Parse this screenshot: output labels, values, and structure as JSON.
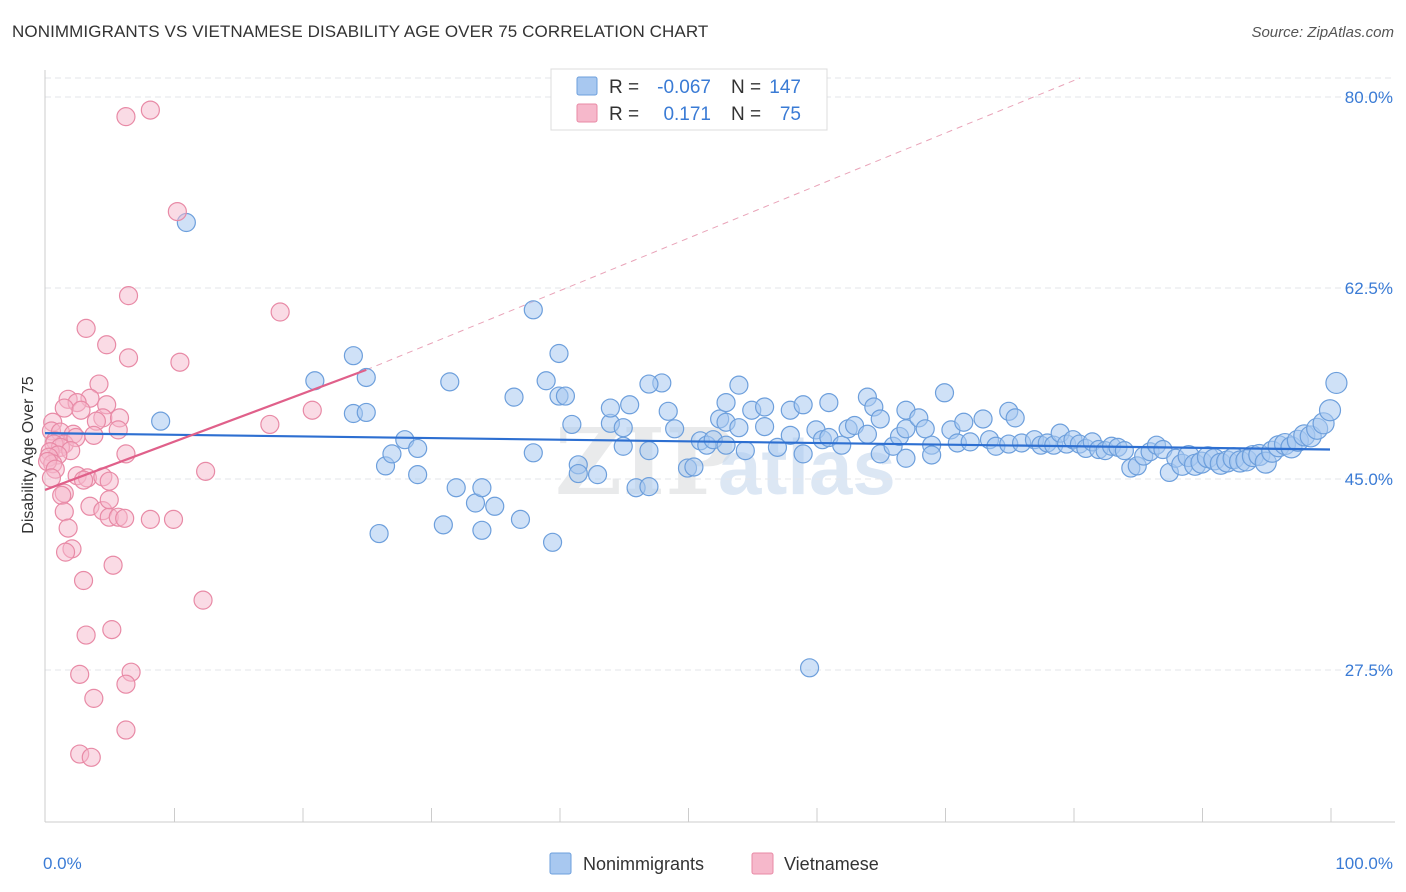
{
  "header": {
    "title": "NONIMMIGRANTS VS VIETNAMESE DISABILITY AGE OVER 75 CORRELATION CHART",
    "source": "Source: ZipAtlas.com"
  },
  "watermark": {
    "part1": "ZIP",
    "part2": "atlas"
  },
  "colors": {
    "blue_fill": "#a8c8f0",
    "blue_stroke": "#6d9fdc",
    "blue_line": "#2d6fd1",
    "pink_fill": "#f6b8cb",
    "pink_stroke": "#e88aa6",
    "pink_line": "#e0608a",
    "grid": "#e3e6ea",
    "tick_label": "#3a7bd5"
  },
  "legend": {
    "rows": [
      {
        "r_label": "R =",
        "r_value": "-0.067",
        "n_label": "N =",
        "n_value": "147"
      },
      {
        "r_label": "R =",
        "r_value": "0.171",
        "n_label": "N =",
        "n_value": "75"
      }
    ]
  },
  "chart_data": {
    "type": "scatter",
    "title": "NONIMMIGRANTS VS VIETNAMESE DISABILITY AGE OVER 75 CORRELATION CHART",
    "xlabel": "",
    "ylabel": "Disability Age Over 75",
    "xlim": [
      0,
      100
    ],
    "ylim": [
      14,
      84
    ],
    "y_ticks": [
      27.5,
      45.0,
      62.5,
      80.0
    ],
    "y_tick_labels": [
      "27.5%",
      "45.0%",
      "62.5%",
      "80.0%"
    ],
    "x_tick_labels": [
      "0.0%",
      "100.0%"
    ],
    "x_minor_ticks": [
      10,
      20,
      30,
      40,
      50,
      60,
      70,
      80,
      90,
      100
    ],
    "legend_placement": "top-center",
    "series": [
      {
        "name": "Nonimmigrants",
        "r": -0.067,
        "n": 147,
        "trend": {
          "x": [
            0,
            100
          ],
          "y": [
            49.2,
            47.7
          ]
        },
        "points": [
          [
            9,
            50.3
          ],
          [
            11,
            68.5
          ],
          [
            21,
            54
          ],
          [
            24,
            56.3
          ],
          [
            25,
            54.3
          ],
          [
            24,
            51
          ],
          [
            25,
            51.1
          ],
          [
            26,
            40
          ],
          [
            26.5,
            46.2
          ],
          [
            27,
            47.3
          ],
          [
            28,
            48.6
          ],
          [
            29,
            47.8
          ],
          [
            29,
            45.4
          ],
          [
            31,
            40.8
          ],
          [
            31.5,
            53.9
          ],
          [
            32,
            44.2
          ],
          [
            33.5,
            42.8
          ],
          [
            34,
            44.2
          ],
          [
            34,
            40.3
          ],
          [
            35,
            42.5
          ],
          [
            36.5,
            52.5
          ],
          [
            37,
            41.3
          ],
          [
            38,
            47.4
          ],
          [
            38,
            60.5
          ],
          [
            39,
            54
          ],
          [
            39.5,
            39.2
          ],
          [
            40,
            52.6
          ],
          [
            40.5,
            52.6
          ],
          [
            40,
            56.5
          ],
          [
            41,
            50
          ],
          [
            41.5,
            46.3
          ],
          [
            41.5,
            45.5
          ],
          [
            43,
            45.4
          ],
          [
            44,
            50.1
          ],
          [
            45,
            48
          ],
          [
            45.5,
            51.8
          ],
          [
            46,
            44.2
          ],
          [
            47,
            44.3
          ],
          [
            47,
            47.6
          ],
          [
            48,
            53.8
          ],
          [
            48.5,
            51.2
          ],
          [
            49,
            49.6
          ],
          [
            50,
            46
          ],
          [
            50.5,
            46.1
          ],
          [
            51,
            48.5
          ],
          [
            51.5,
            48.1
          ],
          [
            52,
            48.6
          ],
          [
            52.5,
            50.5
          ],
          [
            53,
            52
          ],
          [
            53,
            50.2
          ],
          [
            54,
            53.6
          ],
          [
            54,
            49.7
          ],
          [
            54.5,
            47.6
          ],
          [
            55,
            51.3
          ],
          [
            56,
            51.6
          ],
          [
            56,
            49.8
          ],
          [
            57,
            47.9
          ],
          [
            58,
            51.3
          ],
          [
            58,
            49
          ],
          [
            59,
            51.8
          ],
          [
            59,
            47.3
          ],
          [
            60,
            49.5
          ],
          [
            60.5,
            48.6
          ],
          [
            61,
            52
          ],
          [
            61,
            48.8
          ],
          [
            62,
            48.1
          ],
          [
            62.5,
            49.6
          ],
          [
            63,
            49.9
          ],
          [
            64,
            52.5
          ],
          [
            64,
            49.1
          ],
          [
            64.5,
            51.6
          ],
          [
            65,
            50.5
          ],
          [
            65,
            47.3
          ],
          [
            66,
            48
          ],
          [
            66.5,
            48.9
          ],
          [
            67,
            51.3
          ],
          [
            67,
            49.6
          ],
          [
            68,
            50.6
          ],
          [
            68.5,
            49.6
          ],
          [
            69,
            48.1
          ],
          [
            69,
            47.2
          ],
          [
            70,
            52.9
          ],
          [
            70.5,
            49.5
          ],
          [
            71,
            48.3
          ],
          [
            71.5,
            50.2
          ],
          [
            72,
            48.4
          ],
          [
            73,
            50.5
          ],
          [
            73.5,
            48.6
          ],
          [
            74,
            48
          ],
          [
            75,
            51.2
          ],
          [
            75,
            48.2
          ],
          [
            75.5,
            50.6
          ],
          [
            76,
            48.3
          ],
          [
            77,
            48.6
          ],
          [
            77.5,
            48.1
          ],
          [
            78,
            48.3
          ],
          [
            78.5,
            48.1
          ],
          [
            79,
            49.2
          ],
          [
            79.5,
            48.2
          ],
          [
            80,
            48.6
          ],
          [
            80.5,
            48.2
          ],
          [
            81,
            47.8
          ],
          [
            81.5,
            48.4
          ],
          [
            82,
            47.7
          ],
          [
            82.5,
            47.6
          ],
          [
            83,
            48
          ],
          [
            83.5,
            47.9
          ],
          [
            84,
            47.6
          ],
          [
            84.5,
            46
          ],
          [
            85,
            46.2
          ],
          [
            85.5,
            47.1
          ],
          [
            86,
            47.5
          ],
          [
            86.5,
            48.1
          ],
          [
            87,
            47.7
          ],
          [
            87.5,
            45.6
          ],
          [
            88,
            46.9
          ],
          [
            88.5,
            46.3
          ],
          [
            89,
            47.1
          ],
          [
            89.5,
            46.3
          ],
          [
            90,
            46.5
          ],
          [
            90.5,
            47
          ],
          [
            91,
            46.8
          ],
          [
            91.5,
            46.4
          ],
          [
            92,
            46.6
          ],
          [
            92.5,
            46.9
          ],
          [
            93,
            46.6
          ],
          [
            93.5,
            46.7
          ],
          [
            94,
            47.1
          ],
          [
            94.5,
            47.2
          ],
          [
            95,
            46.5
          ],
          [
            95.5,
            47.5
          ],
          [
            96,
            48
          ],
          [
            96.5,
            48.2
          ],
          [
            97,
            47.9
          ],
          [
            97.5,
            48.5
          ],
          [
            98,
            49
          ],
          [
            98.5,
            48.9
          ],
          [
            99,
            49.6
          ],
          [
            99.5,
            50.1
          ],
          [
            100,
            51.3
          ],
          [
            100.5,
            53.8
          ],
          [
            59.5,
            27.7
          ],
          [
            44,
            51.5
          ],
          [
            47,
            53.7
          ],
          [
            45,
            49.7
          ],
          [
            53,
            48.1
          ],
          [
            67,
            46.9
          ]
        ]
      },
      {
        "name": "Vietnamese",
        "r": 0.171,
        "n": 75,
        "trend": {
          "x": [
            0,
            25
          ],
          "y": [
            44,
            55
          ]
        },
        "points": [
          [
            6.3,
            78.2
          ],
          [
            8.2,
            78.8
          ],
          [
            10.3,
            69.5
          ],
          [
            6.5,
            61.8
          ],
          [
            18.3,
            60.3
          ],
          [
            3.2,
            58.8
          ],
          [
            4.8,
            57.3
          ],
          [
            6.5,
            56.1
          ],
          [
            10.5,
            55.7
          ],
          [
            4.2,
            53.7
          ],
          [
            1.8,
            52.3
          ],
          [
            3.5,
            52.4
          ],
          [
            2.5,
            52
          ],
          [
            4.8,
            51.8
          ],
          [
            1.5,
            51.5
          ],
          [
            2.8,
            51.3
          ],
          [
            4.5,
            50.6
          ],
          [
            5.8,
            50.6
          ],
          [
            4,
            50.3
          ],
          [
            0.6,
            50.2
          ],
          [
            17.5,
            50
          ],
          [
            20.8,
            51.3
          ],
          [
            0.5,
            49.4
          ],
          [
            1.2,
            49.3
          ],
          [
            2.2,
            49.1
          ],
          [
            3.8,
            49
          ],
          [
            5.7,
            49.5
          ],
          [
            0.8,
            48.5
          ],
          [
            1.5,
            48.2
          ],
          [
            2.4,
            48.8
          ],
          [
            0.7,
            48.2
          ],
          [
            1.2,
            47.9
          ],
          [
            2,
            47.6
          ],
          [
            0.4,
            47.5
          ],
          [
            1,
            47.2
          ],
          [
            0.3,
            47
          ],
          [
            6.3,
            47.3
          ],
          [
            0.6,
            46.4
          ],
          [
            0.2,
            46.6
          ],
          [
            0.8,
            45.9
          ],
          [
            12.5,
            45.7
          ],
          [
            2.5,
            45.3
          ],
          [
            3.3,
            45.1
          ],
          [
            4.5,
            45.2
          ],
          [
            5,
            44.8
          ],
          [
            0.5,
            45.1
          ],
          [
            1.5,
            43.7
          ],
          [
            1.3,
            43.5
          ],
          [
            3.5,
            42.5
          ],
          [
            4.5,
            42.1
          ],
          [
            5,
            41.5
          ],
          [
            5.7,
            41.5
          ],
          [
            6.2,
            41.4
          ],
          [
            8.2,
            41.3
          ],
          [
            10,
            41.3
          ],
          [
            1.5,
            42
          ],
          [
            1.8,
            40.5
          ],
          [
            2.1,
            38.6
          ],
          [
            1.6,
            38.3
          ],
          [
            5.3,
            37.1
          ],
          [
            3,
            35.7
          ],
          [
            12.3,
            33.9
          ],
          [
            5.2,
            31.2
          ],
          [
            3.2,
            30.7
          ],
          [
            2.7,
            27.1
          ],
          [
            6.7,
            27.3
          ],
          [
            6.3,
            26.2
          ],
          [
            3.8,
            24.9
          ],
          [
            6.3,
            22
          ],
          [
            2.7,
            19.8
          ],
          [
            3.6,
            19.5
          ],
          [
            5,
            43.1
          ],
          [
            3,
            44.9
          ]
        ]
      }
    ]
  },
  "bottom_legend": {
    "items": [
      {
        "label": "Nonimmigrants"
      },
      {
        "label": "Vietnamese"
      }
    ]
  }
}
